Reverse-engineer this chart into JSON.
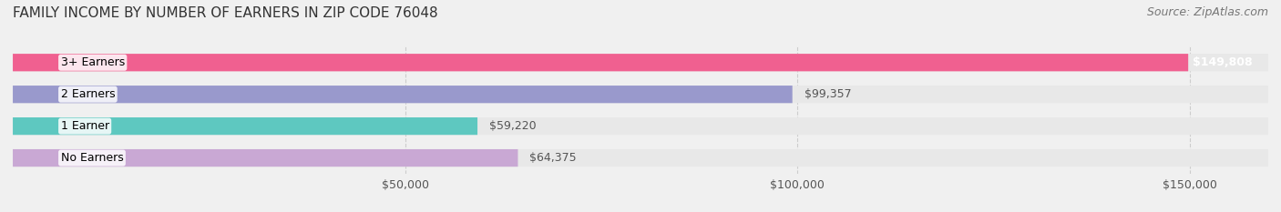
{
  "title": "FAMILY INCOME BY NUMBER OF EARNERS IN ZIP CODE 76048",
  "source": "Source: ZipAtlas.com",
  "categories": [
    "No Earners",
    "1 Earner",
    "2 Earners",
    "3+ Earners"
  ],
  "values": [
    64375,
    59220,
    99357,
    149808
  ],
  "bar_colors": [
    "#c9a8d4",
    "#5ec8c0",
    "#9999cc",
    "#f06090"
  ],
  "bar_labels": [
    "$64,375",
    "$59,220",
    "$99,357",
    "$149,808"
  ],
  "label_on_bar": [
    false,
    false,
    false,
    true
  ],
  "xlim": [
    0,
    160000
  ],
  "xticks": [
    50000,
    100000,
    150000
  ],
  "xtick_labels": [
    "$50,000",
    "$100,000",
    "$150,000"
  ],
  "background_color": "#f0f0f0",
  "bar_background_color": "#e8e8e8",
  "title_fontsize": 11,
  "source_fontsize": 9,
  "tick_fontsize": 9,
  "label_fontsize": 9,
  "category_fontsize": 9,
  "bar_height": 0.55,
  "fig_width": 14.06,
  "fig_height": 2.33
}
